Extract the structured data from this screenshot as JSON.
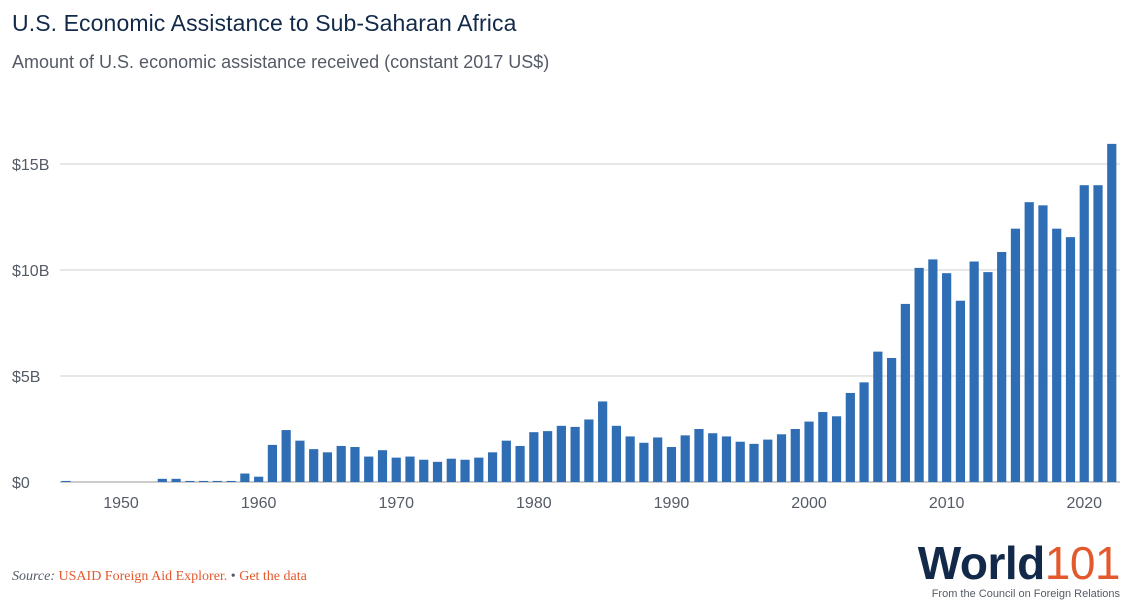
{
  "header": {
    "title": "U.S. Economic Assistance to Sub-Saharan Africa",
    "subtitle": "Amount of U.S. economic assistance received (constant 2017 US$)"
  },
  "footer": {
    "source_label": "Source:",
    "source_link": "USAID Foreign Aid Explorer.",
    "separator": "•",
    "data_link": "Get the data"
  },
  "logo": {
    "word": "World",
    "number": "101",
    "tagline": "From the Council on Foreign Relations"
  },
  "colors": {
    "bar": "#2f6eb5",
    "grid": "#cfcfcf",
    "accent": "#e3592d",
    "title": "#12294a"
  },
  "chart_data": {
    "type": "bar",
    "title": "U.S. Economic Assistance to Sub-Saharan Africa",
    "subtitle": "Amount of U.S. economic assistance received (constant 2017 US$)",
    "xlabel": "",
    "ylabel": "",
    "unit": "billion constant 2017 US$",
    "ylim": [
      0,
      16
    ],
    "y_ticks": [
      0,
      5,
      10,
      15
    ],
    "y_tick_labels": [
      "$0",
      "$5B",
      "$10B",
      "$15B"
    ],
    "x_tick_labels": [
      "1950",
      "1960",
      "1970",
      "1980",
      "1990",
      "2000",
      "2010",
      "2020"
    ],
    "grid": true,
    "categories": [
      1946,
      1947,
      1948,
      1949,
      1950,
      1951,
      1952,
      1953,
      1954,
      1955,
      1956,
      1957,
      1958,
      1959,
      1960,
      1961,
      1962,
      1963,
      1964,
      1965,
      1966,
      1967,
      1968,
      1969,
      1970,
      1971,
      1972,
      1973,
      1974,
      1975,
      1976,
      1977,
      1978,
      1979,
      1980,
      1981,
      1982,
      1983,
      1984,
      1985,
      1986,
      1987,
      1988,
      1989,
      1990,
      1991,
      1992,
      1993,
      1994,
      1995,
      1996,
      1997,
      1998,
      1999,
      2000,
      2001,
      2002,
      2003,
      2004,
      2005,
      2006,
      2007,
      2008,
      2009,
      2010,
      2011,
      2012,
      2013,
      2014,
      2015,
      2016,
      2017,
      2018,
      2019,
      2020,
      2021,
      2022
    ],
    "values": [
      0.05,
      0,
      0,
      0,
      0,
      0,
      0,
      0.15,
      0.15,
      0.05,
      0.05,
      0.05,
      0.05,
      0.4,
      0.25,
      1.75,
      2.45,
      1.95,
      1.55,
      1.4,
      1.7,
      1.65,
      1.2,
      1.5,
      1.15,
      1.2,
      1.05,
      0.95,
      1.1,
      1.05,
      1.15,
      1.4,
      1.95,
      1.7,
      2.35,
      2.4,
      2.65,
      2.6,
      2.95,
      3.8,
      2.65,
      2.15,
      1.85,
      2.1,
      1.65,
      2.2,
      2.5,
      2.3,
      2.15,
      1.9,
      1.8,
      2.0,
      2.25,
      2.5,
      2.85,
      3.3,
      3.1,
      4.2,
      4.7,
      6.15,
      5.85,
      8.4,
      10.1,
      10.5,
      9.85,
      8.55,
      10.4,
      9.9,
      10.85,
      11.95,
      13.2,
      13.05,
      11.95,
      11.55,
      14.0,
      14.0,
      15.95
    ]
  }
}
